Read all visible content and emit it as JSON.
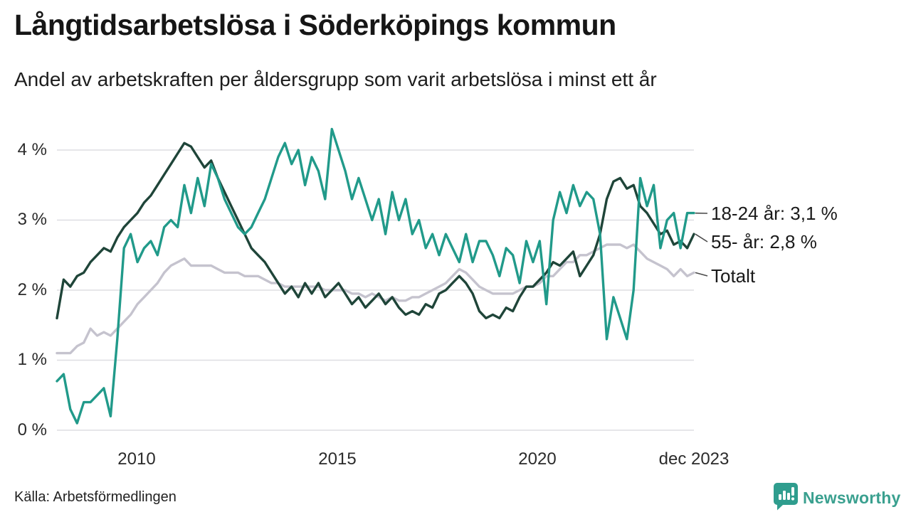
{
  "title": "Långtidsarbetslösa i Söderköpings kommun",
  "subtitle": "Andel av arbetskraften per åldersgrupp som varit arbetslösa i minst ett år",
  "source": "Källa: Arbetsförmedlingen",
  "logo": {
    "text": "Newsworthy",
    "color": "#2f9d8e"
  },
  "colors": {
    "accent_teal": "#219a8a",
    "dark_green": "#1f4539",
    "light_gray_line": "#c5c3ce",
    "gridline": "#dedee2",
    "text": "#1a1a1a"
  },
  "chart_data": {
    "type": "line",
    "title": "Långtidsarbetslösa i Söderköpings kommun",
    "subtitle": "Andel av arbetskraften per åldersgrupp som varit arbetslösa i minst ett år",
    "x_start": 2008.0,
    "x_end": 2023.917,
    "x_unit": "år (månadsdata, 2-månaderssampling)",
    "ylabel": "",
    "xlabel": "",
    "ylim": [
      0,
      4.45
    ],
    "grid": "horizontal",
    "legend_position": "right-end-labels",
    "yticks": [
      "4 %",
      "3 %",
      "2 %",
      "1 %",
      "0 %"
    ],
    "xticks": [
      "2010",
      "2015",
      "2020",
      "dec 2023"
    ],
    "xtick_years": [
      2010,
      2015,
      2020,
      2023.917
    ],
    "series": [
      {
        "name": "18-24 år",
        "end_label": "18-24 år: 3,1 %",
        "color": "#219a8a",
        "values": [
          0.7,
          0.8,
          0.3,
          0.1,
          0.4,
          0.4,
          0.5,
          0.6,
          0.2,
          1.3,
          2.6,
          2.8,
          2.4,
          2.6,
          2.7,
          2.5,
          2.9,
          3.0,
          2.9,
          3.5,
          3.1,
          3.6,
          3.2,
          3.8,
          3.6,
          3.3,
          3.1,
          2.9,
          2.8,
          2.9,
          3.1,
          3.3,
          3.6,
          3.9,
          4.1,
          3.8,
          4.0,
          3.5,
          3.9,
          3.7,
          3.3,
          4.3,
          4.0,
          3.7,
          3.3,
          3.6,
          3.3,
          3.0,
          3.3,
          2.8,
          3.4,
          3.0,
          3.3,
          2.8,
          3.0,
          2.6,
          2.8,
          2.5,
          2.8,
          2.6,
          2.4,
          2.8,
          2.4,
          2.7,
          2.7,
          2.5,
          2.2,
          2.6,
          2.5,
          2.1,
          2.7,
          2.4,
          2.7,
          1.8,
          3.0,
          3.4,
          3.1,
          3.5,
          3.2,
          3.4,
          3.3,
          2.8,
          1.3,
          1.9,
          1.6,
          1.3,
          2.0,
          3.6,
          3.2,
          3.5,
          2.6,
          3.0,
          3.1,
          2.6,
          3.1,
          3.1
        ]
      },
      {
        "name": "55- år",
        "end_label": "55- år: 2,8 %",
        "color": "#1f4539",
        "values": [
          1.6,
          2.15,
          2.05,
          2.2,
          2.25,
          2.4,
          2.5,
          2.6,
          2.55,
          2.75,
          2.9,
          3.0,
          3.1,
          3.25,
          3.35,
          3.5,
          3.65,
          3.8,
          3.95,
          4.1,
          4.05,
          3.9,
          3.75,
          3.85,
          3.6,
          3.4,
          3.2,
          3.0,
          2.8,
          2.6,
          2.5,
          2.4,
          2.25,
          2.1,
          1.95,
          2.05,
          1.9,
          2.1,
          1.95,
          2.1,
          1.9,
          2.0,
          2.1,
          1.95,
          1.8,
          1.9,
          1.75,
          1.85,
          1.95,
          1.8,
          1.9,
          1.75,
          1.65,
          1.7,
          1.65,
          1.8,
          1.75,
          1.95,
          2.0,
          2.1,
          2.2,
          2.1,
          1.95,
          1.7,
          1.6,
          1.65,
          1.6,
          1.75,
          1.7,
          1.9,
          2.05,
          2.05,
          2.15,
          2.25,
          2.4,
          2.35,
          2.45,
          2.55,
          2.2,
          2.35,
          2.5,
          2.8,
          3.3,
          3.55,
          3.6,
          3.45,
          3.5,
          3.2,
          3.1,
          2.95,
          2.8,
          2.85,
          2.65,
          2.7,
          2.6,
          2.8
        ]
      },
      {
        "name": "Totalt",
        "end_label": "Totalt",
        "color": "#c5c3ce",
        "values": [
          1.1,
          1.1,
          1.1,
          1.2,
          1.25,
          1.45,
          1.35,
          1.4,
          1.35,
          1.45,
          1.55,
          1.65,
          1.8,
          1.9,
          2.0,
          2.1,
          2.25,
          2.35,
          2.4,
          2.45,
          2.35,
          2.35,
          2.35,
          2.35,
          2.3,
          2.25,
          2.25,
          2.25,
          2.2,
          2.2,
          2.2,
          2.15,
          2.1,
          2.1,
          2.05,
          2.05,
          2.05,
          2.05,
          2.05,
          2.05,
          2.0,
          2.0,
          2.0,
          2.0,
          1.95,
          1.95,
          1.9,
          1.95,
          1.9,
          1.85,
          1.9,
          1.85,
          1.85,
          1.9,
          1.9,
          1.95,
          2.0,
          2.05,
          2.1,
          2.2,
          2.3,
          2.25,
          2.15,
          2.05,
          2.0,
          1.95,
          1.95,
          1.95,
          1.95,
          2.0,
          2.05,
          2.05,
          2.1,
          2.2,
          2.2,
          2.3,
          2.4,
          2.4,
          2.5,
          2.5,
          2.55,
          2.6,
          2.65,
          2.65,
          2.65,
          2.6,
          2.65,
          2.55,
          2.45,
          2.4,
          2.35,
          2.3,
          2.2,
          2.3,
          2.2,
          2.25
        ]
      }
    ]
  }
}
